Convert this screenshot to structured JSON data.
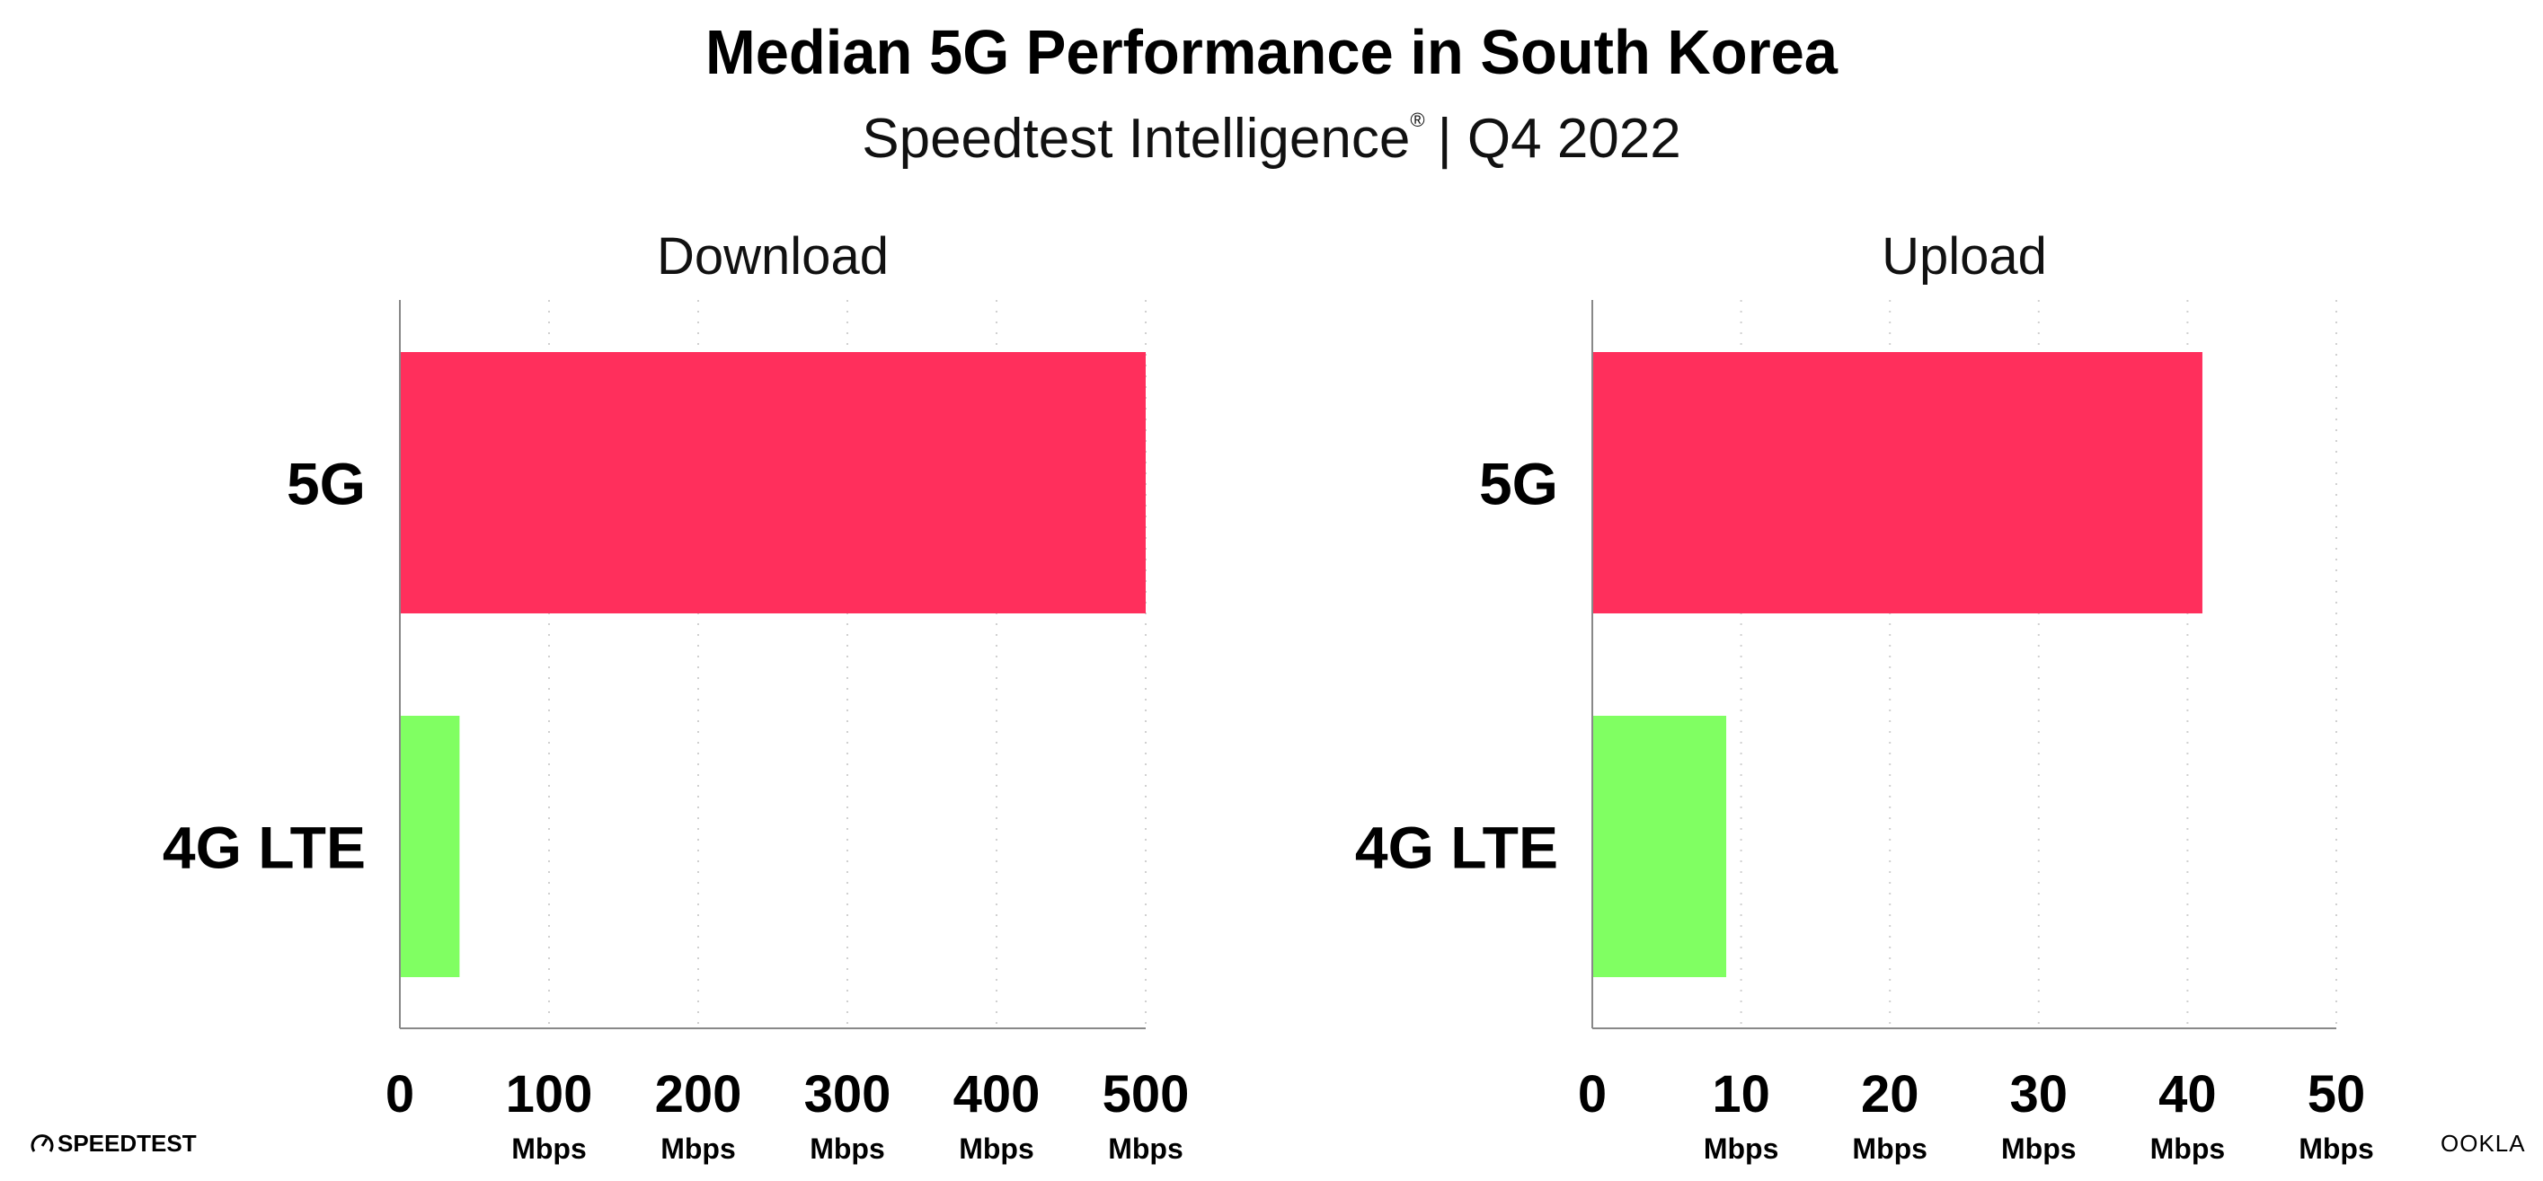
{
  "header": {
    "title": "Median 5G Performance in South Korea",
    "subtitle": "Speedtest Intelligence",
    "subtitle_mark": "®",
    "subtitle_period": "| Q4 2022"
  },
  "footer": {
    "left_logo": "SPEEDTEST",
    "right_logo": "OOKLA"
  },
  "colors": {
    "5G": "#ff2f5c",
    "4G LTE": "#80ff62",
    "grid": "#d0d0d0",
    "axis": "#888888"
  },
  "chart_data": [
    {
      "type": "bar",
      "orientation": "horizontal",
      "title": "Download",
      "categories": [
        "5G",
        "4G LTE"
      ],
      "values": [
        500,
        40
      ],
      "xlim": [
        0,
        500
      ],
      "ticks": [
        0,
        100,
        200,
        300,
        400,
        500
      ],
      "tick_labels": [
        "0",
        "100",
        "200",
        "300",
        "400",
        "500"
      ],
      "tick_unit": "Mbps",
      "grid": true
    },
    {
      "type": "bar",
      "orientation": "horizontal",
      "title": "Upload",
      "categories": [
        "5G",
        "4G LTE"
      ],
      "values": [
        41,
        9
      ],
      "xlim": [
        0,
        50
      ],
      "ticks": [
        0,
        10,
        20,
        30,
        40,
        50
      ],
      "tick_labels": [
        "0",
        "10",
        "20",
        "30",
        "40",
        "50"
      ],
      "tick_unit": "Mbps",
      "grid": true
    }
  ]
}
